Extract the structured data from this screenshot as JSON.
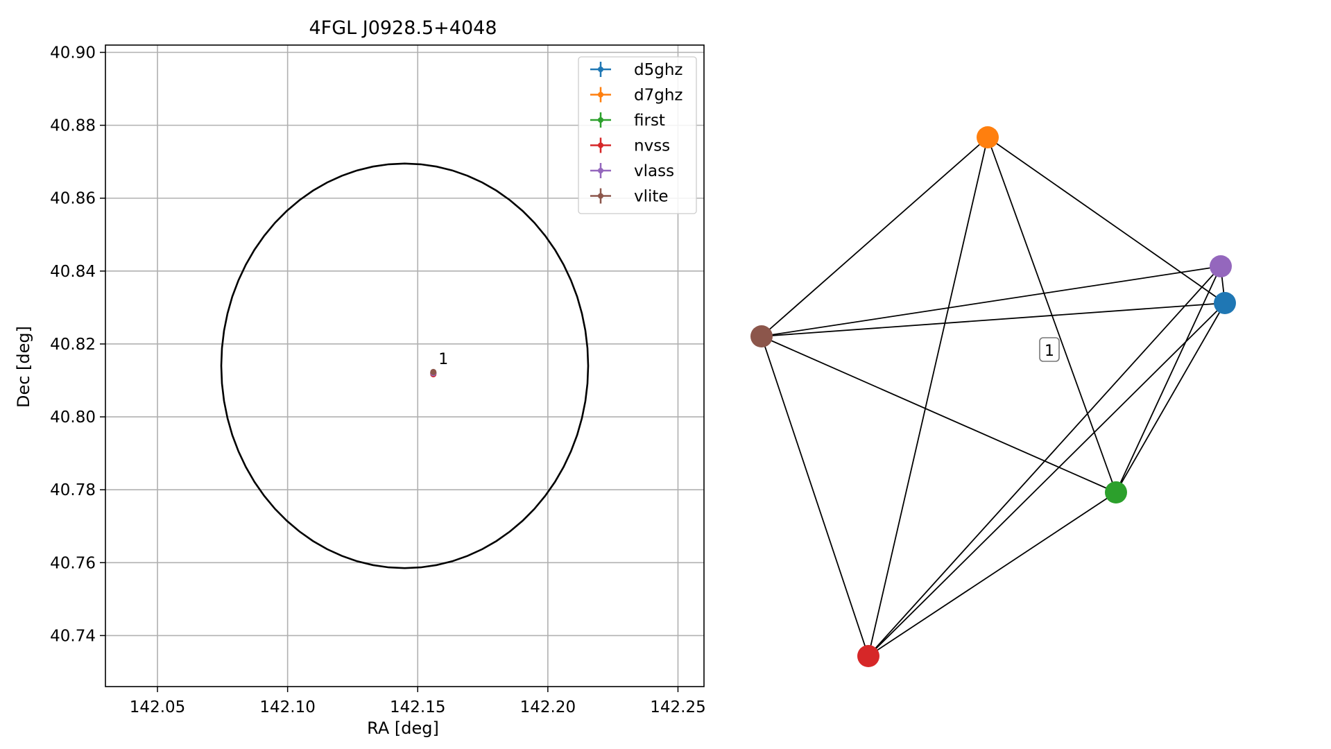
{
  "chart_data": [
    {
      "type": "scatter",
      "title": "4FGL J0928.5+4048",
      "xlabel": "RA [deg]",
      "ylabel": "Dec [deg]",
      "xlim": [
        142.03,
        142.26
      ],
      "ylim": [
        40.726,
        40.902
      ],
      "x_ticks": [
        "142.05",
        "142.10",
        "142.15",
        "142.20",
        "142.25"
      ],
      "y_ticks": [
        "40.74",
        "40.76",
        "40.78",
        "40.80",
        "40.82",
        "40.84",
        "40.86",
        "40.88",
        "40.90"
      ],
      "grid": true,
      "legend_position": "top-right",
      "series": [
        {
          "name": "d5ghz",
          "color": "#1f77b4",
          "x": [
            142.156
          ],
          "y": [
            40.812
          ]
        },
        {
          "name": "d7ghz",
          "color": "#ff7f0e",
          "x": [
            142.156
          ],
          "y": [
            40.812
          ]
        },
        {
          "name": "first",
          "color": "#2ca02c",
          "x": [
            142.156
          ],
          "y": [
            40.812
          ]
        },
        {
          "name": "nvss",
          "color": "#d62728",
          "x": [
            142.156
          ],
          "y": [
            40.8117
          ]
        },
        {
          "name": "vlass",
          "color": "#9467bd",
          "x": [
            142.156
          ],
          "y": [
            40.812
          ]
        },
        {
          "name": "vlite",
          "color": "#8c564b",
          "x": [
            142.156
          ],
          "y": [
            40.8123
          ]
        }
      ],
      "ellipse": {
        "center_ra": 142.145,
        "center_dec": 40.814,
        "semi_ra": 0.0705,
        "semi_dec": 0.0555,
        "color": "#000000"
      },
      "annotations": [
        {
          "text": "1",
          "x": 142.158,
          "y": 40.8145
        }
      ]
    },
    {
      "type": "network",
      "nodes": [
        {
          "id": "d5ghz",
          "color": "#1f77b4"
        },
        {
          "id": "d7ghz",
          "color": "#ff7f0e"
        },
        {
          "id": "first",
          "color": "#2ca02c"
        },
        {
          "id": "nvss",
          "color": "#d62728"
        },
        {
          "id": "vlass",
          "color": "#9467bd"
        },
        {
          "id": "vlite",
          "color": "#8c564b"
        }
      ],
      "edges": [
        [
          "d7ghz",
          "vlite"
        ],
        [
          "d7ghz",
          "nvss"
        ],
        [
          "d7ghz",
          "first"
        ],
        [
          "d7ghz",
          "d5ghz"
        ],
        [
          "vlite",
          "vlass"
        ],
        [
          "vlite",
          "d5ghz"
        ],
        [
          "vlite",
          "first"
        ],
        [
          "vlite",
          "nvss"
        ],
        [
          "nvss",
          "vlass"
        ],
        [
          "nvss",
          "d5ghz"
        ],
        [
          "nvss",
          "first"
        ],
        [
          "first",
          "vlass"
        ],
        [
          "first",
          "d5ghz"
        ],
        [
          "vlass",
          "d5ghz"
        ]
      ],
      "group_label": "1"
    }
  ]
}
